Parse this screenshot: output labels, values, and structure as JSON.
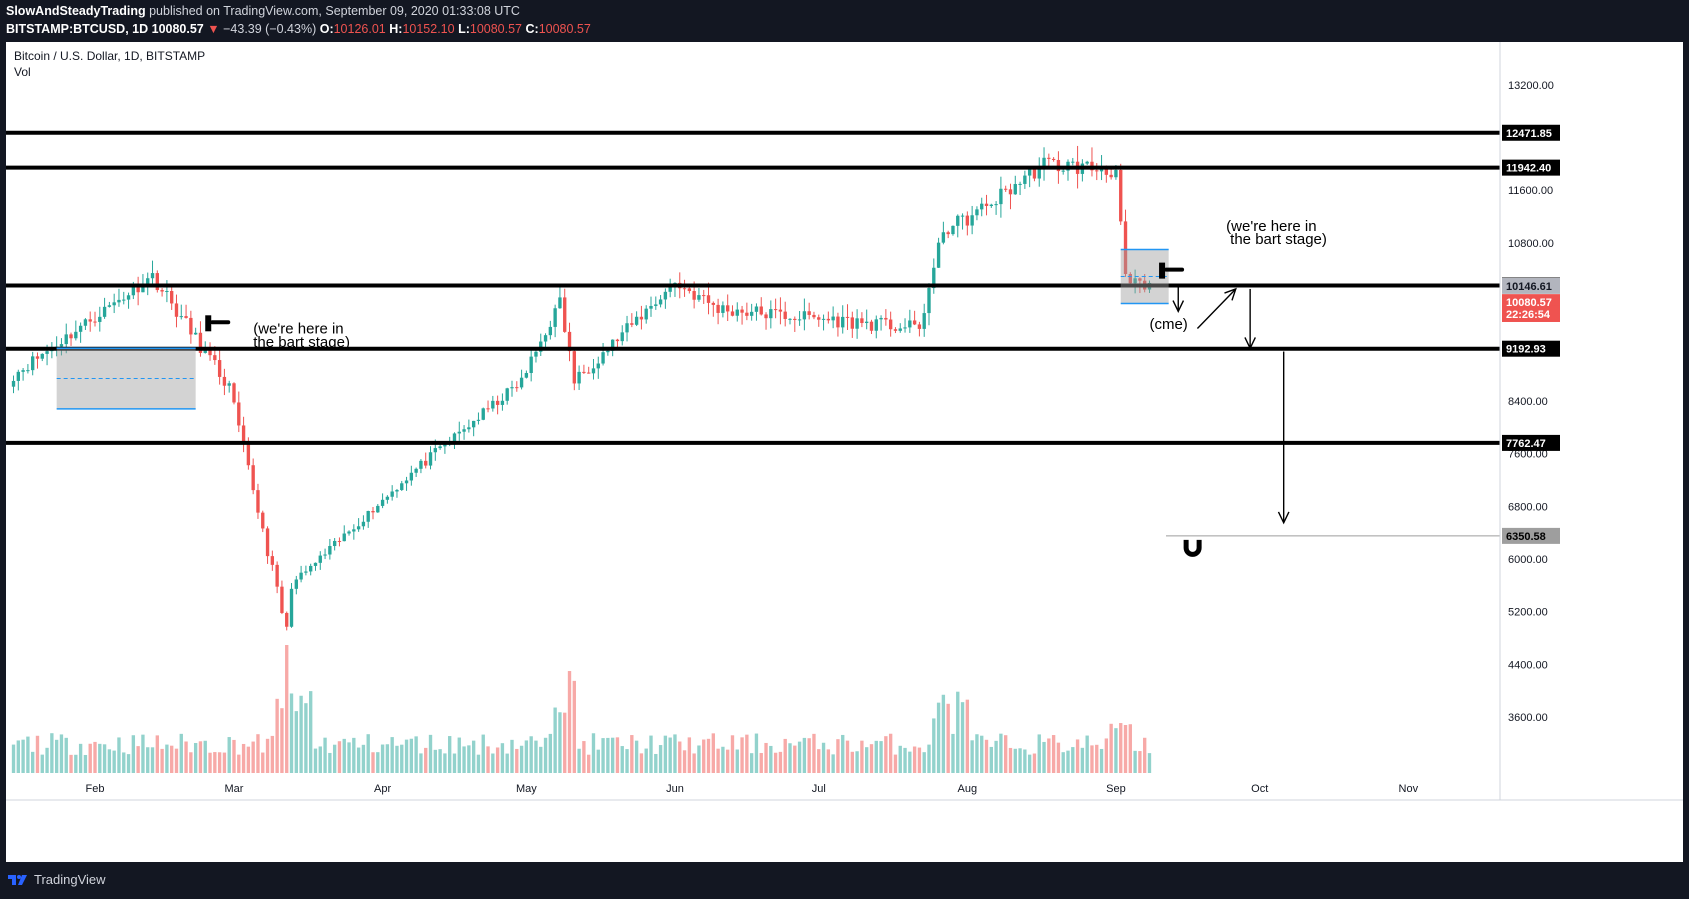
{
  "header": {
    "author": "SlowAndSteadyTrading",
    "published": "published on TradingView.com, September 09, 2020 01:33:08 UTC",
    "symbol": "BITSTAMP:BTCUSD, 1D",
    "last": "10080.57",
    "change": "−43.39 (−0.43%)",
    "open_label": "O:",
    "open": "10126.01",
    "high_label": "H:",
    "high": "10152.10",
    "low_label": "L:",
    "low": "10080.57",
    "close_label": "C:",
    "close": "10080.57"
  },
  "legend": {
    "title": "Bitcoin / U.S. Dollar, 1D, BITSTAMP",
    "vol": "Vol"
  },
  "footer": {
    "brand": "TradingView"
  },
  "annotations": {
    "note1_line1": "(we're here in",
    "note1_line2": "the bart stage)",
    "note2_line1": "(we're here in",
    "note2_line2": "the bart stage)",
    "cme": "(cme)"
  },
  "colors": {
    "up": "#26a69a",
    "down": "#ef5350",
    "bg": "#ffffff",
    "frame": "#131722",
    "line": "#000000"
  },
  "chart_data": {
    "type": "candlestick",
    "x_axis": [
      "Feb",
      "Mar",
      "Apr",
      "May",
      "Jun",
      "Jul",
      "Aug",
      "Sep",
      "Oct",
      "Nov"
    ],
    "y_axis_ticks": [
      13200,
      11600,
      10800,
      8400,
      7600,
      6800,
      6000,
      5200,
      4400,
      3600
    ],
    "ylim": [
      2750,
      13850
    ],
    "horizontal_levels": [
      12471.85,
      11942.4,
      10153.46,
      9192.93,
      7762.47,
      6350.58
    ],
    "price_labels": {
      "last": "10080.57",
      "countdown": "22:26:54",
      "mark": "10146.61"
    },
    "key_prices": [
      {
        "date": "2020-01-15",
        "price": 8800
      },
      {
        "date": "2020-02-13",
        "price": 10300
      },
      {
        "date": "2020-02-29",
        "price": 8600
      },
      {
        "date": "2020-03-12",
        "price": 4900
      },
      {
        "date": "2020-03-13",
        "price": 5600
      },
      {
        "date": "2020-04-07",
        "price": 7300
      },
      {
        "date": "2020-04-30",
        "price": 8700
      },
      {
        "date": "2020-05-08",
        "price": 9900
      },
      {
        "date": "2020-05-11",
        "price": 8700
      },
      {
        "date": "2020-06-01",
        "price": 10200
      },
      {
        "date": "2020-06-10",
        "price": 9800
      },
      {
        "date": "2020-07-22",
        "price": 9500
      },
      {
        "date": "2020-07-27",
        "price": 11000
      },
      {
        "date": "2020-08-02",
        "price": 11200
      },
      {
        "date": "2020-08-17",
        "price": 12000
      },
      {
        "date": "2020-09-01",
        "price": 11900
      },
      {
        "date": "2020-09-03",
        "price": 10200
      },
      {
        "date": "2020-09-08",
        "price": 10100
      }
    ]
  }
}
